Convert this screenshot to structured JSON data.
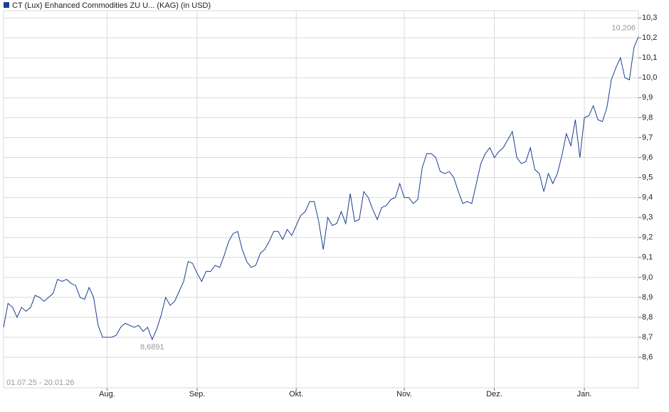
{
  "chart_data": {
    "type": "line",
    "date_range": "01.07.25 - 20.01.26",
    "categories": [
      null,
      null,
      null,
      null,
      null,
      null,
      null,
      null,
      null,
      null,
      null,
      null,
      null,
      null,
      null,
      null,
      null,
      null,
      null,
      null,
      null,
      null,
      null,
      "Aug.",
      null,
      null,
      null,
      null,
      null,
      null,
      null,
      null,
      null,
      null,
      null,
      null,
      null,
      null,
      null,
      null,
      null,
      null,
      null,
      "Sep.",
      null,
      null,
      null,
      null,
      null,
      null,
      null,
      null,
      null,
      null,
      null,
      null,
      null,
      null,
      null,
      null,
      null,
      null,
      null,
      null,
      null,
      "Okt.",
      null,
      null,
      null,
      null,
      null,
      null,
      null,
      null,
      null,
      null,
      null,
      null,
      null,
      null,
      null,
      null,
      null,
      null,
      null,
      null,
      null,
      null,
      null,
      "Nov.",
      null,
      null,
      null,
      null,
      null,
      null,
      null,
      null,
      null,
      null,
      null,
      null,
      null,
      null,
      null,
      null,
      null,
      null,
      null,
      "Dez.",
      null,
      null,
      null,
      null,
      null,
      null,
      null,
      null,
      null,
      null,
      null,
      null,
      null,
      null,
      null,
      null,
      null,
      null,
      null,
      "Jan.",
      null,
      null,
      null,
      null,
      null,
      null,
      null,
      null,
      null,
      null,
      null,
      null
    ],
    "series": [
      {
        "name": "CT (Lux) Enhanced Commodities ZU U... (KAG) (in USD)",
        "color": "#1a3f8f",
        "values": [
          8.75,
          8.87,
          8.85,
          8.8,
          8.85,
          8.83,
          8.85,
          8.91,
          8.9,
          8.88,
          8.9,
          8.92,
          8.99,
          8.98,
          8.99,
          8.97,
          8.96,
          8.9,
          8.89,
          8.95,
          8.9,
          8.76,
          8.7,
          8.7,
          8.7,
          8.71,
          8.75,
          8.77,
          8.76,
          8.75,
          8.76,
          8.73,
          8.75,
          8.6891,
          8.74,
          8.81,
          8.9,
          8.86,
          8.88,
          8.93,
          8.98,
          9.08,
          9.07,
          9.02,
          8.98,
          9.03,
          9.03,
          9.06,
          9.05,
          9.11,
          9.18,
          9.22,
          9.23,
          9.14,
          9.08,
          9.05,
          9.06,
          9.12,
          9.14,
          9.18,
          9.23,
          9.23,
          9.19,
          9.24,
          9.21,
          9.26,
          9.31,
          9.33,
          9.38,
          9.38,
          9.28,
          9.14,
          9.3,
          9.26,
          9.27,
          9.33,
          9.27,
          9.42,
          9.28,
          9.29,
          9.43,
          9.4,
          9.34,
          9.29,
          9.35,
          9.36,
          9.39,
          9.4,
          9.47,
          9.4,
          9.4,
          9.37,
          9.39,
          9.55,
          9.62,
          9.62,
          9.6,
          9.53,
          9.52,
          9.53,
          9.5,
          9.43,
          9.37,
          9.38,
          9.37,
          9.47,
          9.57,
          9.62,
          9.65,
          9.6,
          9.63,
          9.65,
          9.69,
          9.73,
          9.6,
          9.57,
          9.58,
          9.65,
          9.54,
          9.52,
          9.43,
          9.52,
          9.47,
          9.52,
          9.61,
          9.72,
          9.66,
          9.79,
          9.6,
          9.8,
          9.81,
          9.86,
          9.79,
          9.78,
          9.85,
          9.99,
          10.05,
          10.1,
          10.0,
          9.99,
          10.15,
          10.206
        ],
        "value_labels": [
          null,
          null,
          null,
          null,
          null,
          null,
          null,
          null,
          null,
          null,
          null,
          null,
          null,
          null,
          null,
          null,
          null,
          null,
          null,
          null,
          null,
          null,
          null,
          null,
          null,
          null,
          null,
          null,
          null,
          null,
          null,
          null,
          null,
          "8,6891",
          null,
          null,
          null,
          null,
          null,
          null,
          null,
          null,
          null,
          null,
          null,
          null,
          null,
          null,
          null,
          null,
          null,
          null,
          null,
          null,
          null,
          null,
          null,
          null,
          null,
          null,
          null,
          null,
          null,
          null,
          null,
          null,
          null,
          null,
          null,
          null,
          null,
          null,
          null,
          null,
          null,
          null,
          null,
          null,
          null,
          null,
          null,
          null,
          null,
          null,
          null,
          null,
          null,
          null,
          null,
          null,
          null,
          null,
          null,
          null,
          null,
          null,
          null,
          null,
          null,
          null,
          null,
          null,
          null,
          null,
          null,
          null,
          null,
          null,
          null,
          null,
          null,
          null,
          null,
          null,
          null,
          null,
          null,
          null,
          null,
          null,
          null,
          null,
          null,
          null,
          null,
          null,
          null,
          null,
          null,
          null,
          null,
          null,
          null,
          null,
          null,
          null,
          null,
          null,
          null,
          null,
          null,
          "10,206"
        ]
      }
    ],
    "ylim": [
      8.447,
      10.336
    ],
    "yticks": [
      {
        "value": 8.6,
        "label": "8,6"
      },
      {
        "value": 8.7,
        "label": "8,7"
      },
      {
        "value": 8.8,
        "label": "8,8"
      },
      {
        "value": 8.9,
        "label": "8,9"
      },
      {
        "value": 9.0,
        "label": "9,0"
      },
      {
        "value": 9.1,
        "label": "9,1"
      },
      {
        "value": 9.2,
        "label": "9,2"
      },
      {
        "value": 9.3,
        "label": "9,3"
      },
      {
        "value": 9.4,
        "label": "9,4"
      },
      {
        "value": 9.5,
        "label": "9,5"
      },
      {
        "value": 9.6,
        "label": "9,6"
      },
      {
        "value": 9.7,
        "label": "9,7"
      },
      {
        "value": 9.8,
        "label": "9,8"
      },
      {
        "value": 9.9,
        "label": "9,9"
      },
      {
        "value": 10.0,
        "label": "10,0"
      },
      {
        "value": 10.1,
        "label": "10,1"
      },
      {
        "value": 10.2,
        "label": "10,2"
      },
      {
        "value": 10.3,
        "label": "10,3"
      }
    ],
    "grid": true
  }
}
